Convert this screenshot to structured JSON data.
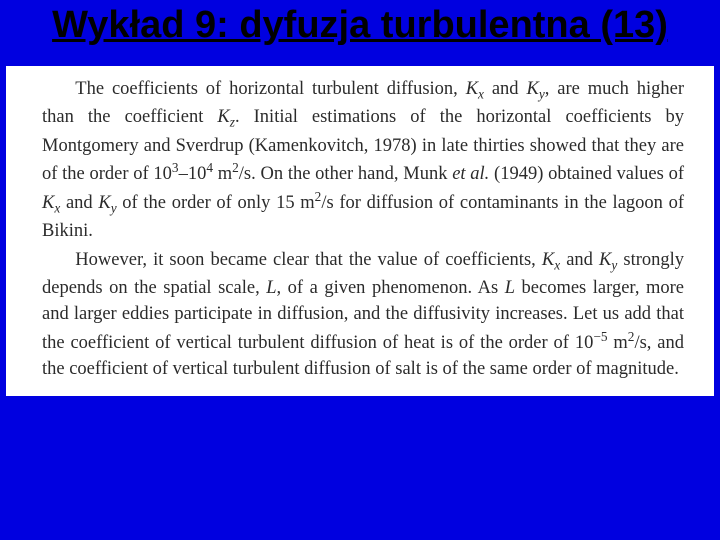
{
  "slide": {
    "title": "Wykład 9: dyfuzja turbulentna (13)",
    "background_color": "#0000e0",
    "title_color": "#000000",
    "title_fontsize": 38,
    "paragraphs": {
      "p1_a": "The coefficients of horizontal turbulent diffusion, ",
      "p1_kx": "K",
      "p1_kx_sub": "x",
      "p1_b": " and ",
      "p1_ky": "K",
      "p1_ky_sub": "y",
      "p1_c": ", are much higher than the coefficient ",
      "p1_kz": "K",
      "p1_kz_sub": "z",
      "p1_d": ". Initial estimations of the horizontal coefficients by Montgomery and Sverdrup (Kamenkovitch, 1978) in late thirties showed that they are of the order of 10",
      "p1_exp3": "3",
      "p1_e": "–10",
      "p1_exp4": "4",
      "p1_f": " m",
      "p1_exp2a": "2",
      "p1_g": "/s. On the other hand, Munk ",
      "p1_etal": "et al.",
      "p1_h": " (1949) obtained values of ",
      "p1_kx2": "K",
      "p1_kx2_sub": "x",
      "p1_i": " and ",
      "p1_ky2": "K",
      "p1_ky2_sub": "y",
      "p1_j": " of the order of only 15 m",
      "p1_exp2b": "2",
      "p1_k": "/s for diffusion of contaminants in the lagoon of Bikini.",
      "p2_a": "However, it soon became clear that the value of coefficients, ",
      "p2_kx": "K",
      "p2_kx_sub": "x",
      "p2_b": " and ",
      "p2_ky": "K",
      "p2_ky_sub": "y",
      "p2_c": " strongly depends on the spatial scale, ",
      "p2_L": "L",
      "p2_d": ", of a given phenomenon. As ",
      "p2_L2": "L",
      "p2_e": " becomes larger, more and larger eddies participate in diffusion, and the diffusivity increases. Let us add that the coefficient of vertical turbulent diffusion of heat is of the order of 10",
      "p2_expm5": "−5",
      "p2_f": " m",
      "p2_exp2": "2",
      "p2_g": "/s, and the coefficient of vertical turbulent diffusion of salt is of the same order of magnitude."
    },
    "content_background": "#ffffff",
    "content_text_color": "#2b2b2b",
    "content_fontsize": 18.5
  }
}
